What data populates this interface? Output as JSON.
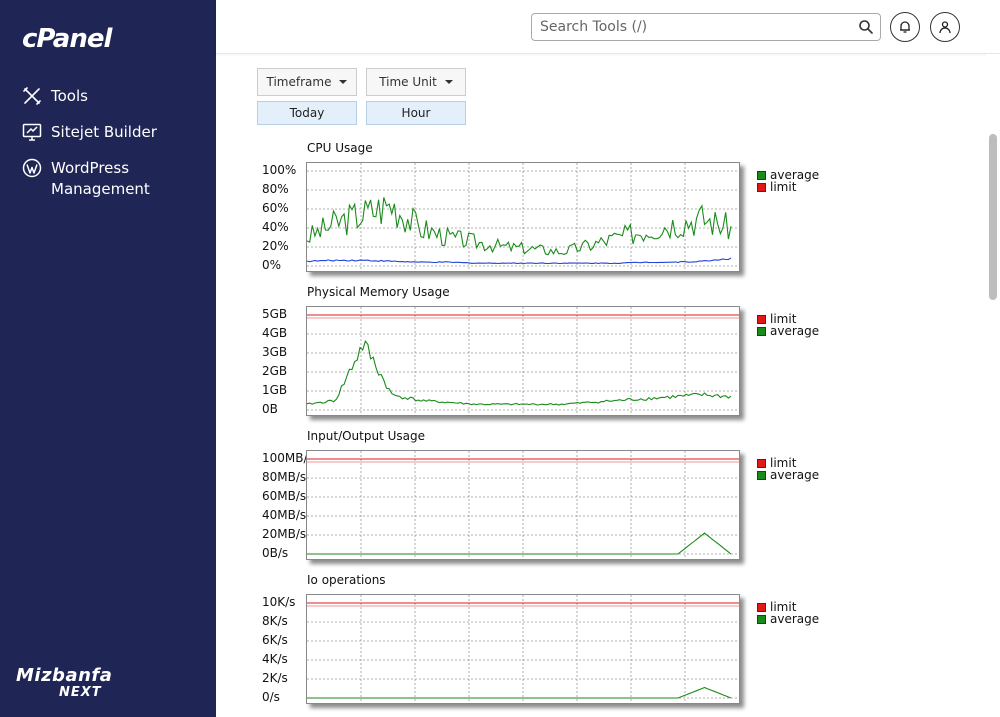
{
  "sidebar": {
    "logo": "cPanel",
    "items": [
      {
        "label": "Tools",
        "icon": "tools-icon"
      },
      {
        "label": "Sitejet Builder",
        "icon": "sitejet-icon"
      },
      {
        "label": "WordPress Management",
        "icon": "wordpress-icon"
      }
    ],
    "brand_line1": "Mizbanfa",
    "brand_line2": "NEXT"
  },
  "header": {
    "search_placeholder": "Search Tools (/)"
  },
  "controls": {
    "timeframe_label": "Timeframe",
    "timeunit_label": "Time Unit",
    "timeframe_value": "Today",
    "timeunit_value": "Hour"
  },
  "colors": {
    "sidebar_bg": "#1f2554",
    "average": "#1a8a1a",
    "limit": "#e01818",
    "cpu_secondary": "#2244dd"
  },
  "chart_data": [
    {
      "type": "line",
      "title": "CPU Usage",
      "ytick_labels": [
        "100%",
        "80%",
        "60%",
        "40%",
        "20%",
        "0%"
      ],
      "ylim": [
        0,
        100
      ],
      "legend": [
        "average",
        "limit"
      ],
      "legend_colors": [
        "#1a8a1a",
        "#e01818"
      ],
      "series": [
        {
          "name": "average",
          "values": [
            30,
            45,
            55,
            65,
            40,
            30,
            25,
            20,
            18,
            15,
            22,
            30,
            38,
            45,
            50,
            40
          ]
        },
        {
          "name": "limit",
          "values": [
            5,
            6,
            6,
            5,
            4,
            4,
            3,
            3,
            3,
            3,
            3,
            3,
            4,
            4,
            5,
            8
          ]
        }
      ]
    },
    {
      "type": "line",
      "title": "Physical Memory Usage",
      "ytick_labels": [
        "5GB",
        "4GB",
        "3GB",
        "2GB",
        "1GB",
        "0B"
      ],
      "ylim": [
        0,
        5
      ],
      "legend": [
        "limit",
        "average"
      ],
      "legend_colors": [
        "#e01818",
        "#1a8a1a"
      ],
      "series": [
        {
          "name": "limit",
          "values": [
            5,
            5
          ]
        },
        {
          "name": "average",
          "values": [
            0.3,
            0.5,
            3.5,
            0.8,
            0.5,
            0.4,
            0.3,
            0.3,
            0.3,
            0.3,
            0.4,
            0.5,
            0.6,
            0.7,
            0.8,
            0.7
          ]
        }
      ]
    },
    {
      "type": "line",
      "title": "Input/Output Usage",
      "ytick_labels": [
        "100MB/s",
        "80MB/s",
        "60MB/s",
        "40MB/s",
        "20MB/s",
        "0B/s"
      ],
      "ylim": [
        0,
        100
      ],
      "legend": [
        "limit",
        "average"
      ],
      "legend_colors": [
        "#e01818",
        "#1a8a1a"
      ],
      "series": [
        {
          "name": "limit",
          "values": [
            100,
            100
          ]
        },
        {
          "name": "average",
          "values": [
            0,
            0,
            0,
            0,
            0,
            0,
            0,
            0,
            0,
            0,
            0,
            0,
            0,
            0,
            0,
            22,
            0
          ]
        }
      ]
    },
    {
      "type": "line",
      "title": "Io operations",
      "ytick_labels": [
        "10K/s",
        "8K/s",
        "6K/s",
        "4K/s",
        "2K/s",
        "0/s"
      ],
      "ylim": [
        0,
        10
      ],
      "legend": [
        "limit",
        "average"
      ],
      "legend_colors": [
        "#e01818",
        "#1a8a1a"
      ],
      "series": [
        {
          "name": "limit",
          "values": [
            10,
            10
          ]
        },
        {
          "name": "average",
          "values": [
            0,
            0,
            0,
            0,
            0,
            0,
            0,
            0,
            0,
            0,
            0,
            0,
            0,
            0,
            0,
            1.1,
            0
          ]
        }
      ]
    }
  ]
}
